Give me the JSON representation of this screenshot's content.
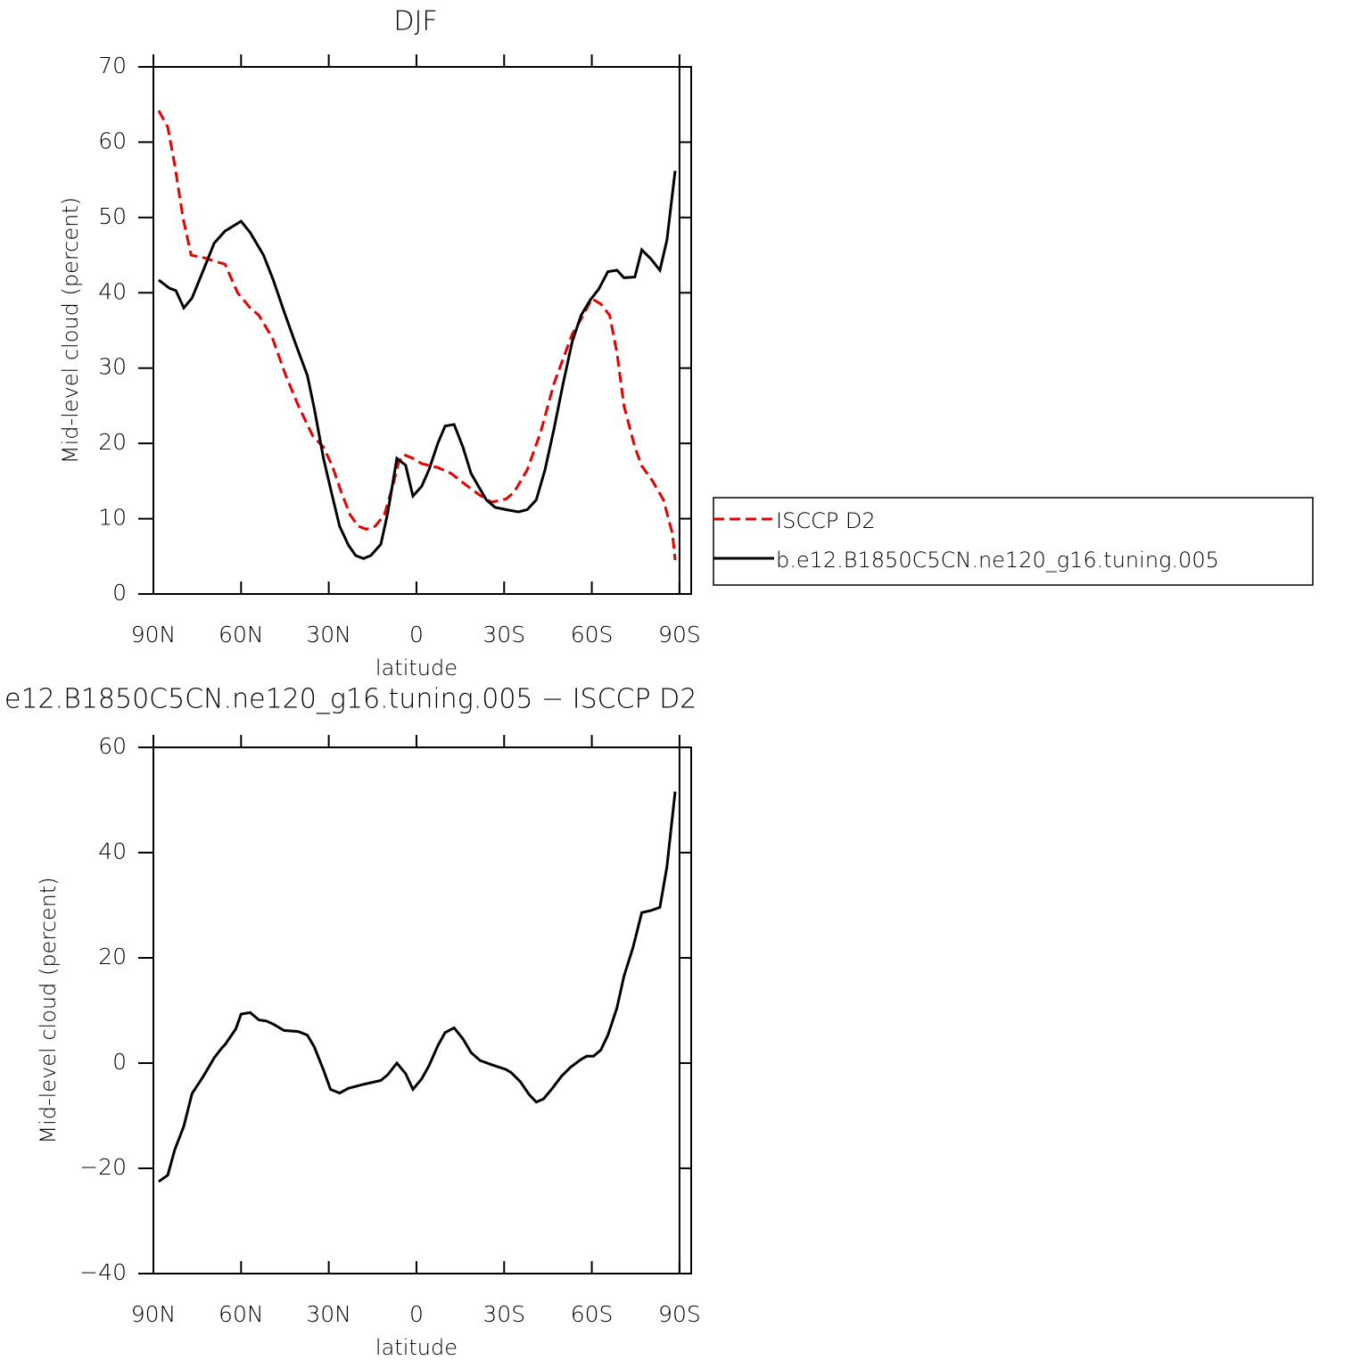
{
  "chart_data": [
    {
      "type": "line",
      "title": "DJF",
      "xlabel": "latitude",
      "ylabel": "Mid-level cloud (percent)",
      "xlim": [
        90,
        -94
      ],
      "ylim": [
        0,
        70
      ],
      "xticks": [
        {
          "value": 90,
          "label": "90N"
        },
        {
          "value": 60,
          "label": "60N"
        },
        {
          "value": 30,
          "label": "30N"
        },
        0,
        {
          "value": -30,
          "label": "30S"
        },
        {
          "value": -60,
          "label": "60S"
        },
        {
          "value": -90,
          "label": "90S"
        }
      ],
      "yticks": [
        0,
        10,
        20,
        30,
        40,
        50,
        60,
        70
      ],
      "legend": "right",
      "series": [
        {
          "name": "ISCCP D2",
          "color": "#e60000",
          "dash": true,
          "x": [
            88.2,
            85.1,
            82.7,
            79.9,
            77.1,
            72.2,
            69.2,
            65.5,
            61.2,
            56.9,
            53.9,
            49.3,
            44.7,
            40.4,
            35.5,
            31.8,
            28.8,
            25.7,
            22.7,
            19.9,
            17.2,
            14.1,
            11.0,
            8.0,
            6.1,
            4.3,
            1.2,
            -1.8,
            -7.3,
            -11.9,
            -16.5,
            -21.4,
            -25.7,
            -30.6,
            -33.4,
            -37.9,
            -42.5,
            -47.1,
            -53.3,
            -56.3,
            -60.0,
            -63.1,
            -66.1,
            -68.6,
            -71.0,
            -74.7,
            -77.1,
            -80.8,
            -84.5,
            -87.6,
            -88.5
          ],
          "values": [
            64.2,
            62,
            57,
            50,
            45,
            44.6,
            44.2,
            43.8,
            40,
            38,
            37,
            34,
            29,
            25,
            21,
            19.5,
            17,
            13.5,
            10.5,
            9,
            8.6,
            9,
            10.5,
            14.5,
            17.5,
            18.5,
            18,
            17.3,
            16.8,
            16,
            14.6,
            13.2,
            12.2,
            12.6,
            13.5,
            16.5,
            21.5,
            28,
            34.5,
            36.5,
            39.2,
            38.5,
            37,
            32,
            25,
            19.5,
            17,
            15,
            12.5,
            8,
            4.5
          ]
        },
        {
          "name": "b.e12.B1850C5CN.ne120_g16.tuning.005",
          "color": "#000000",
          "dash": false,
          "x": [
            88.2,
            84.5,
            82.3,
            79.6,
            76.8,
            72.9,
            69.2,
            65.5,
            60.0,
            56.9,
            52.3,
            49.0,
            45.3,
            41.6,
            37.3,
            34.9,
            31.8,
            28.8,
            26.3,
            23.3,
            20.8,
            18.1,
            15.6,
            12.2,
            9.8,
            6.7,
            3.7,
            1.2,
            -1.8,
            -4.3,
            -7.3,
            -9.8,
            -12.9,
            -15.9,
            -18.7,
            -23.9,
            -26.9,
            -30.6,
            -34.9,
            -37.9,
            -41.0,
            -44.0,
            -47.1,
            -50.2,
            -53.3,
            -56.3,
            -59.4,
            -62.4,
            -65.5,
            -68.6,
            -71.0,
            -74.7,
            -77.1,
            -80.2,
            -83.3,
            -85.7,
            -88.5
          ],
          "values": [
            41.7,
            40.6,
            40.3,
            38.0,
            39.3,
            43,
            46.6,
            48.2,
            49.5,
            48,
            45,
            41.7,
            37.5,
            33.5,
            29,
            24.5,
            18,
            13,
            9,
            6.5,
            5.1,
            4.7,
            5.1,
            6.6,
            10.8,
            18,
            17.1,
            13.0,
            14.3,
            16.5,
            20,
            22.3,
            22.5,
            19.5,
            16,
            12.5,
            11.5,
            11.2,
            10.9,
            11.2,
            12.5,
            16.5,
            22,
            28,
            33.5,
            37,
            39,
            40.5,
            42.8,
            43,
            42.0,
            42.1,
            45.7,
            44.5,
            43,
            47,
            56.2
          ]
        }
      ]
    },
    {
      "type": "line",
      "title": "e12.B1850C5CN.ne120_g16.tuning.005 − ISCCP D2",
      "xlabel": "latitude",
      "ylabel": "Mid-level cloud (percent)",
      "xlim": [
        90,
        -94
      ],
      "ylim": [
        -40,
        60
      ],
      "xticks": [
        {
          "value": 90,
          "label": "90N"
        },
        {
          "value": 60,
          "label": "60N"
        },
        {
          "value": 30,
          "label": "30N"
        },
        0,
        {
          "value": -30,
          "label": "30S"
        },
        {
          "value": -60,
          "label": "60S"
        },
        {
          "value": -90,
          "label": "90S"
        }
      ],
      "yticks": [
        {
          "value": -40,
          "label": "−40"
        },
        {
          "value": -20,
          "label": "−20"
        },
        0,
        20,
        40,
        60
      ],
      "series": [
        {
          "color": "#000000",
          "dash": false,
          "x": [
            88.2,
            85.1,
            82.7,
            79.6,
            76.8,
            72.9,
            69.2,
            66.7,
            65.5,
            61.8,
            60.0,
            56.9,
            53.9,
            51.4,
            49.0,
            45.3,
            40.4,
            37.3,
            34.9,
            31.8,
            29.4,
            26.3,
            23.3,
            17.8,
            12.2,
            9.8,
            6.7,
            3.7,
            1.2,
            -1.8,
            -4.3,
            -7.3,
            -9.8,
            -12.9,
            -15.9,
            -18.7,
            -21.7,
            -25.7,
            -30.6,
            -32.4,
            -35.5,
            -38.6,
            -41.0,
            -43.5,
            -46.5,
            -49.6,
            -52.7,
            -56.3,
            -58.2,
            -60.6,
            -63.1,
            -65.5,
            -68.6,
            -71.0,
            -74.1,
            -77.1,
            -80.2,
            -83.3,
            -85.7,
            -88.5
          ],
          "values": [
            -22.5,
            -21.3,
            -16.5,
            -12,
            -5.8,
            -2.5,
            1,
            2.8,
            3.5,
            6.5,
            9.3,
            9.6,
            8.2,
            8,
            7.4,
            6.2,
            6,
            5.3,
            3,
            -1.3,
            -5,
            -5.7,
            -4.8,
            -4,
            -3.3,
            -2.2,
            0,
            -2,
            -5,
            -3,
            -0.5,
            3.3,
            5.8,
            6.7,
            4.6,
            2,
            0.5,
            -0.3,
            -1.2,
            -1.8,
            -3.5,
            -6,
            -7.4,
            -6.8,
            -4.8,
            -2.5,
            -0.8,
            0.7,
            1.3,
            1.3,
            2.5,
            5.3,
            10.5,
            16.5,
            22,
            28.6,
            29,
            29.6,
            37.3,
            51.6
          ]
        }
      ]
    }
  ]
}
